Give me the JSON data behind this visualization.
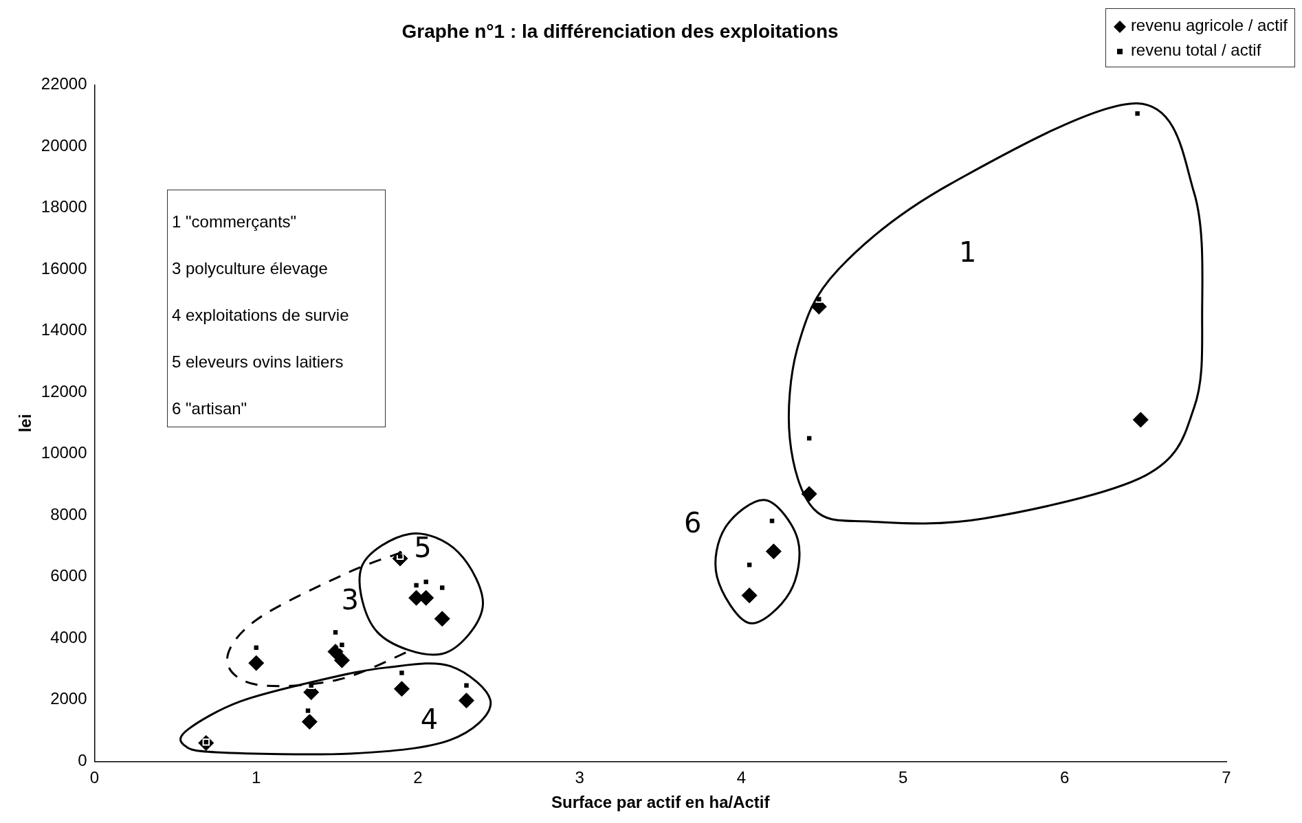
{
  "chart_data": {
    "type": "scatter",
    "title": "Graphe n°1 : la différenciation des exploitations",
    "xlabel": "Surface par actif en ha/Actif",
    "ylabel": "lei",
    "xlim": [
      0,
      7
    ],
    "xticks": [
      0,
      1,
      2,
      3,
      4,
      5,
      6,
      7
    ],
    "ylim": [
      0,
      22000
    ],
    "yticks": [
      0,
      2000,
      4000,
      6000,
      8000,
      10000,
      12000,
      14000,
      16000,
      18000,
      20000,
      22000
    ],
    "grid": false,
    "legend": "top right",
    "series": [
      {
        "name": "revenu agricole / actif",
        "color": "#000000",
        "marker": "diamond",
        "x": [
          1.0,
          1.49,
          1.53,
          1.99,
          2.05,
          2.15,
          1.89,
          1.34,
          1.33,
          1.9,
          2.3,
          0.69,
          4.05,
          4.2,
          4.42,
          4.48,
          6.47
        ],
        "values": [
          3200,
          3570,
          3290,
          5320,
          5320,
          4640,
          6600,
          2250,
          1290,
          2360,
          1980,
          600,
          5400,
          6830,
          8700,
          14790,
          11110
        ]
      },
      {
        "name": "revenu total / actif",
        "color": "#000000",
        "marker": "square",
        "x": [
          1.0,
          1.49,
          1.53,
          1.99,
          2.05,
          2.15,
          1.89,
          1.34,
          1.32,
          1.9,
          2.3,
          0.69,
          4.05,
          4.19,
          4.42,
          4.48,
          6.45
        ],
        "values": [
          3700,
          4200,
          3790,
          5730,
          5840,
          5650,
          6670,
          2470,
          1650,
          2880,
          2470,
          630,
          6390,
          7820,
          10510,
          15030,
          21070
        ]
      }
    ],
    "annotations": [
      "1 \"commerçants\"",
      "3 polyculture élevage",
      "4 exploitations de survie",
      "5 eleveurs ovins laitiers",
      "6 \"artisan\"",
      "1",
      "3",
      "4",
      "5",
      "6"
    ]
  }
}
